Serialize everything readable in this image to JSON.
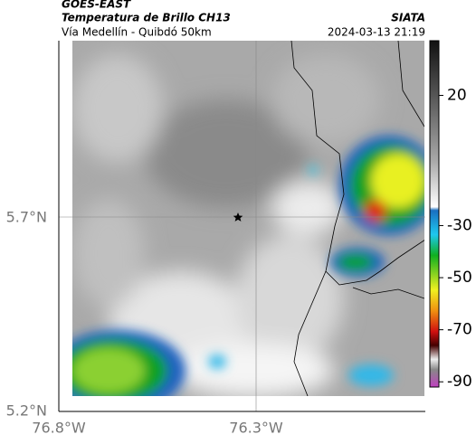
{
  "header": {
    "product": "GOES-EAST",
    "title": "Temperatura de Brillo CH13",
    "region": "Vía Medellín - Quibdó 50km",
    "source": "SIATA",
    "datetime": "2024-03-13 21:19"
  },
  "map": {
    "y_ticks": [
      "5.7°N",
      "5.2°N"
    ],
    "x_ticks": [
      "76.8°W",
      "76.3°W"
    ]
  },
  "colorbar": {
    "lim": [
      41,
      -92
    ],
    "ticks": [
      20,
      -30,
      -50,
      -70,
      -90
    ]
  }
}
